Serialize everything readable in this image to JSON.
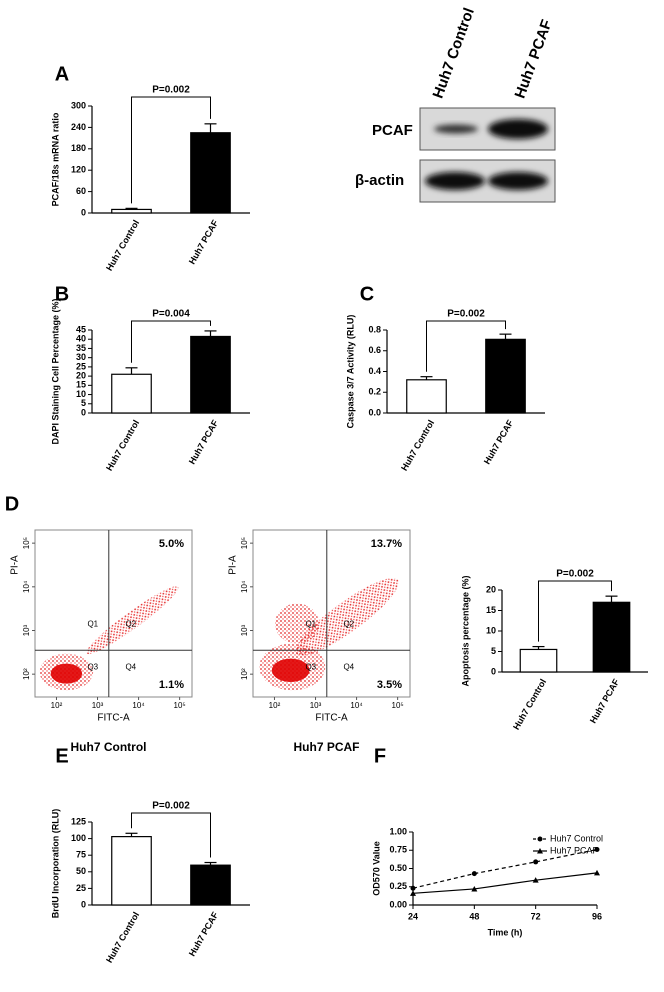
{
  "chart_data": [
    {
      "type": "bar",
      "label": "A",
      "ylabel": "PCAF/18s mRNA ratio",
      "categories": [
        "Huh7 Control",
        "Huh7 PCAF"
      ],
      "values": [
        10,
        225
      ],
      "errors": [
        3,
        25
      ],
      "colors": [
        "#ffffff",
        "#000000"
      ],
      "ylim": [
        0,
        300
      ],
      "yticks": [
        0,
        60,
        120,
        180,
        240,
        300
      ],
      "annotation": "P=0.002"
    },
    {
      "type": "bar",
      "label": "B",
      "ylabel": "DAPI Staining Cell Percentage (%)",
      "categories": [
        "Huh7 Control",
        "Huh7 PCAF"
      ],
      "values": [
        21,
        41.5
      ],
      "errors": [
        3.5,
        3
      ],
      "colors": [
        "#ffffff",
        "#000000"
      ],
      "ylim": [
        0,
        45
      ],
      "yticks": [
        0,
        5,
        10,
        15,
        20,
        25,
        30,
        35,
        40,
        45
      ],
      "annotation": "P=0.004"
    },
    {
      "type": "bar",
      "label": "C",
      "ylabel": "Caspase 3/7 Activity (RLU)",
      "categories": [
        "Huh7 Control",
        "Huh7 PCAF"
      ],
      "values": [
        0.32,
        0.71
      ],
      "errors": [
        0.03,
        0.05
      ],
      "colors": [
        "#ffffff",
        "#000000"
      ],
      "ylim": [
        0,
        0.8
      ],
      "yticks": [
        {
          "value": 0,
          "label": "0.0"
        },
        0.2,
        0.4,
        0.6,
        0.8
      ],
      "annotation": "P=0.002"
    },
    {
      "type": "bar",
      "label": "D",
      "ylabel": "Apoptosis percentage (%)",
      "categories": [
        "Huh7 Control",
        "Huh7 PCAF"
      ],
      "values": [
        5.5,
        17
      ],
      "errors": [
        0.7,
        1.5
      ],
      "colors": [
        "#ffffff",
        "#000000"
      ],
      "ylim": [
        0,
        20
      ],
      "yticks": [
        0,
        5,
        10,
        15,
        20
      ],
      "annotation": "P=0.002"
    },
    {
      "type": "bar",
      "label": "E",
      "ylabel": "BrdU Incorporation (RLU)",
      "categories": [
        "Huh7 Control",
        "Huh7 PCAF"
      ],
      "values": [
        103,
        60
      ],
      "errors": [
        5,
        4
      ],
      "colors": [
        "#ffffff",
        "#000000"
      ],
      "ylim": [
        0,
        125
      ],
      "yticks": [
        0,
        25,
        50,
        75,
        100,
        125
      ],
      "annotation": "P=0.002"
    },
    {
      "type": "line",
      "label": "F",
      "xlabel": "Time (h)",
      "ylabel": "OD570 Value",
      "x": [
        24,
        48,
        72,
        96
      ],
      "xlim": [
        24,
        96
      ],
      "xticks": [
        24,
        48,
        72,
        96
      ],
      "ylim": [
        0,
        1.0
      ],
      "yticks": [
        {
          "value": 0,
          "label": "0.00"
        },
        {
          "value": 0.25,
          "label": "0.25"
        },
        {
          "value": 0.5,
          "label": "0.50"
        },
        {
          "value": 0.75,
          "label": "0.75"
        },
        {
          "value": 1.0,
          "label": "1.00"
        }
      ],
      "series": [
        {
          "name": "Huh7 Control",
          "color": "#000000",
          "line_style": "dashed",
          "marker": "circle",
          "values": [
            0.23,
            0.43,
            0.59,
            0.76
          ]
        },
        {
          "name": "Huh7 PCAF",
          "color": "#000000",
          "line_style": "solid",
          "marker": "triangle",
          "values": [
            0.16,
            0.22,
            0.34,
            0.44
          ]
        }
      ]
    }
  ],
  "blot": {
    "lanes": [
      "Huh7 Control",
      "Huh7 PCAF"
    ],
    "rows": [
      "PCAF",
      "β-actin"
    ]
  },
  "flow_plots": [
    {
      "title": "Huh7 Control",
      "xlabel": "FITC-A",
      "ylabel": "PI-A",
      "quadrants": [
        "Q1",
        "Q2",
        "Q3",
        "Q4"
      ],
      "upper_right": "5.0%",
      "lower_right": "1.1%",
      "xlim": [
        30,
        200000
      ],
      "ylim": [
        30,
        200000
      ],
      "xticks": [
        {
          "value": 100,
          "label": "10²"
        },
        {
          "value": 1000,
          "label": "10³"
        },
        {
          "value": 10000,
          "label": "10⁴"
        },
        {
          "value": 100000,
          "label": "10⁵"
        }
      ],
      "yticks": [
        {
          "value": 100,
          "label": "10²"
        },
        {
          "value": 1000,
          "label": "10³"
        },
        {
          "value": 10000,
          "label": "10⁴"
        },
        {
          "value": 100000,
          "label": "10⁵"
        }
      ]
    },
    {
      "title": "Huh7 PCAF",
      "xlabel": "FITC-A",
      "ylabel": "PI-A",
      "quadrants": [
        "Q1",
        "Q2",
        "Q3",
        "Q4"
      ],
      "upper_right": "13.7%",
      "lower_right": "3.5%",
      "xlim": [
        30,
        200000
      ],
      "ylim": [
        30,
        200000
      ],
      "xticks": [
        {
          "value": 100,
          "label": "10²"
        },
        {
          "value": 1000,
          "label": "10³"
        },
        {
          "value": 10000,
          "label": "10⁴"
        },
        {
          "value": 100000,
          "label": "10⁵"
        }
      ],
      "yticks": [
        {
          "value": 100,
          "label": "10²"
        },
        {
          "value": 1000,
          "label": "10³"
        },
        {
          "value": 10000,
          "label": "10⁴"
        },
        {
          "value": 100000,
          "label": "10⁵"
        }
      ]
    }
  ]
}
